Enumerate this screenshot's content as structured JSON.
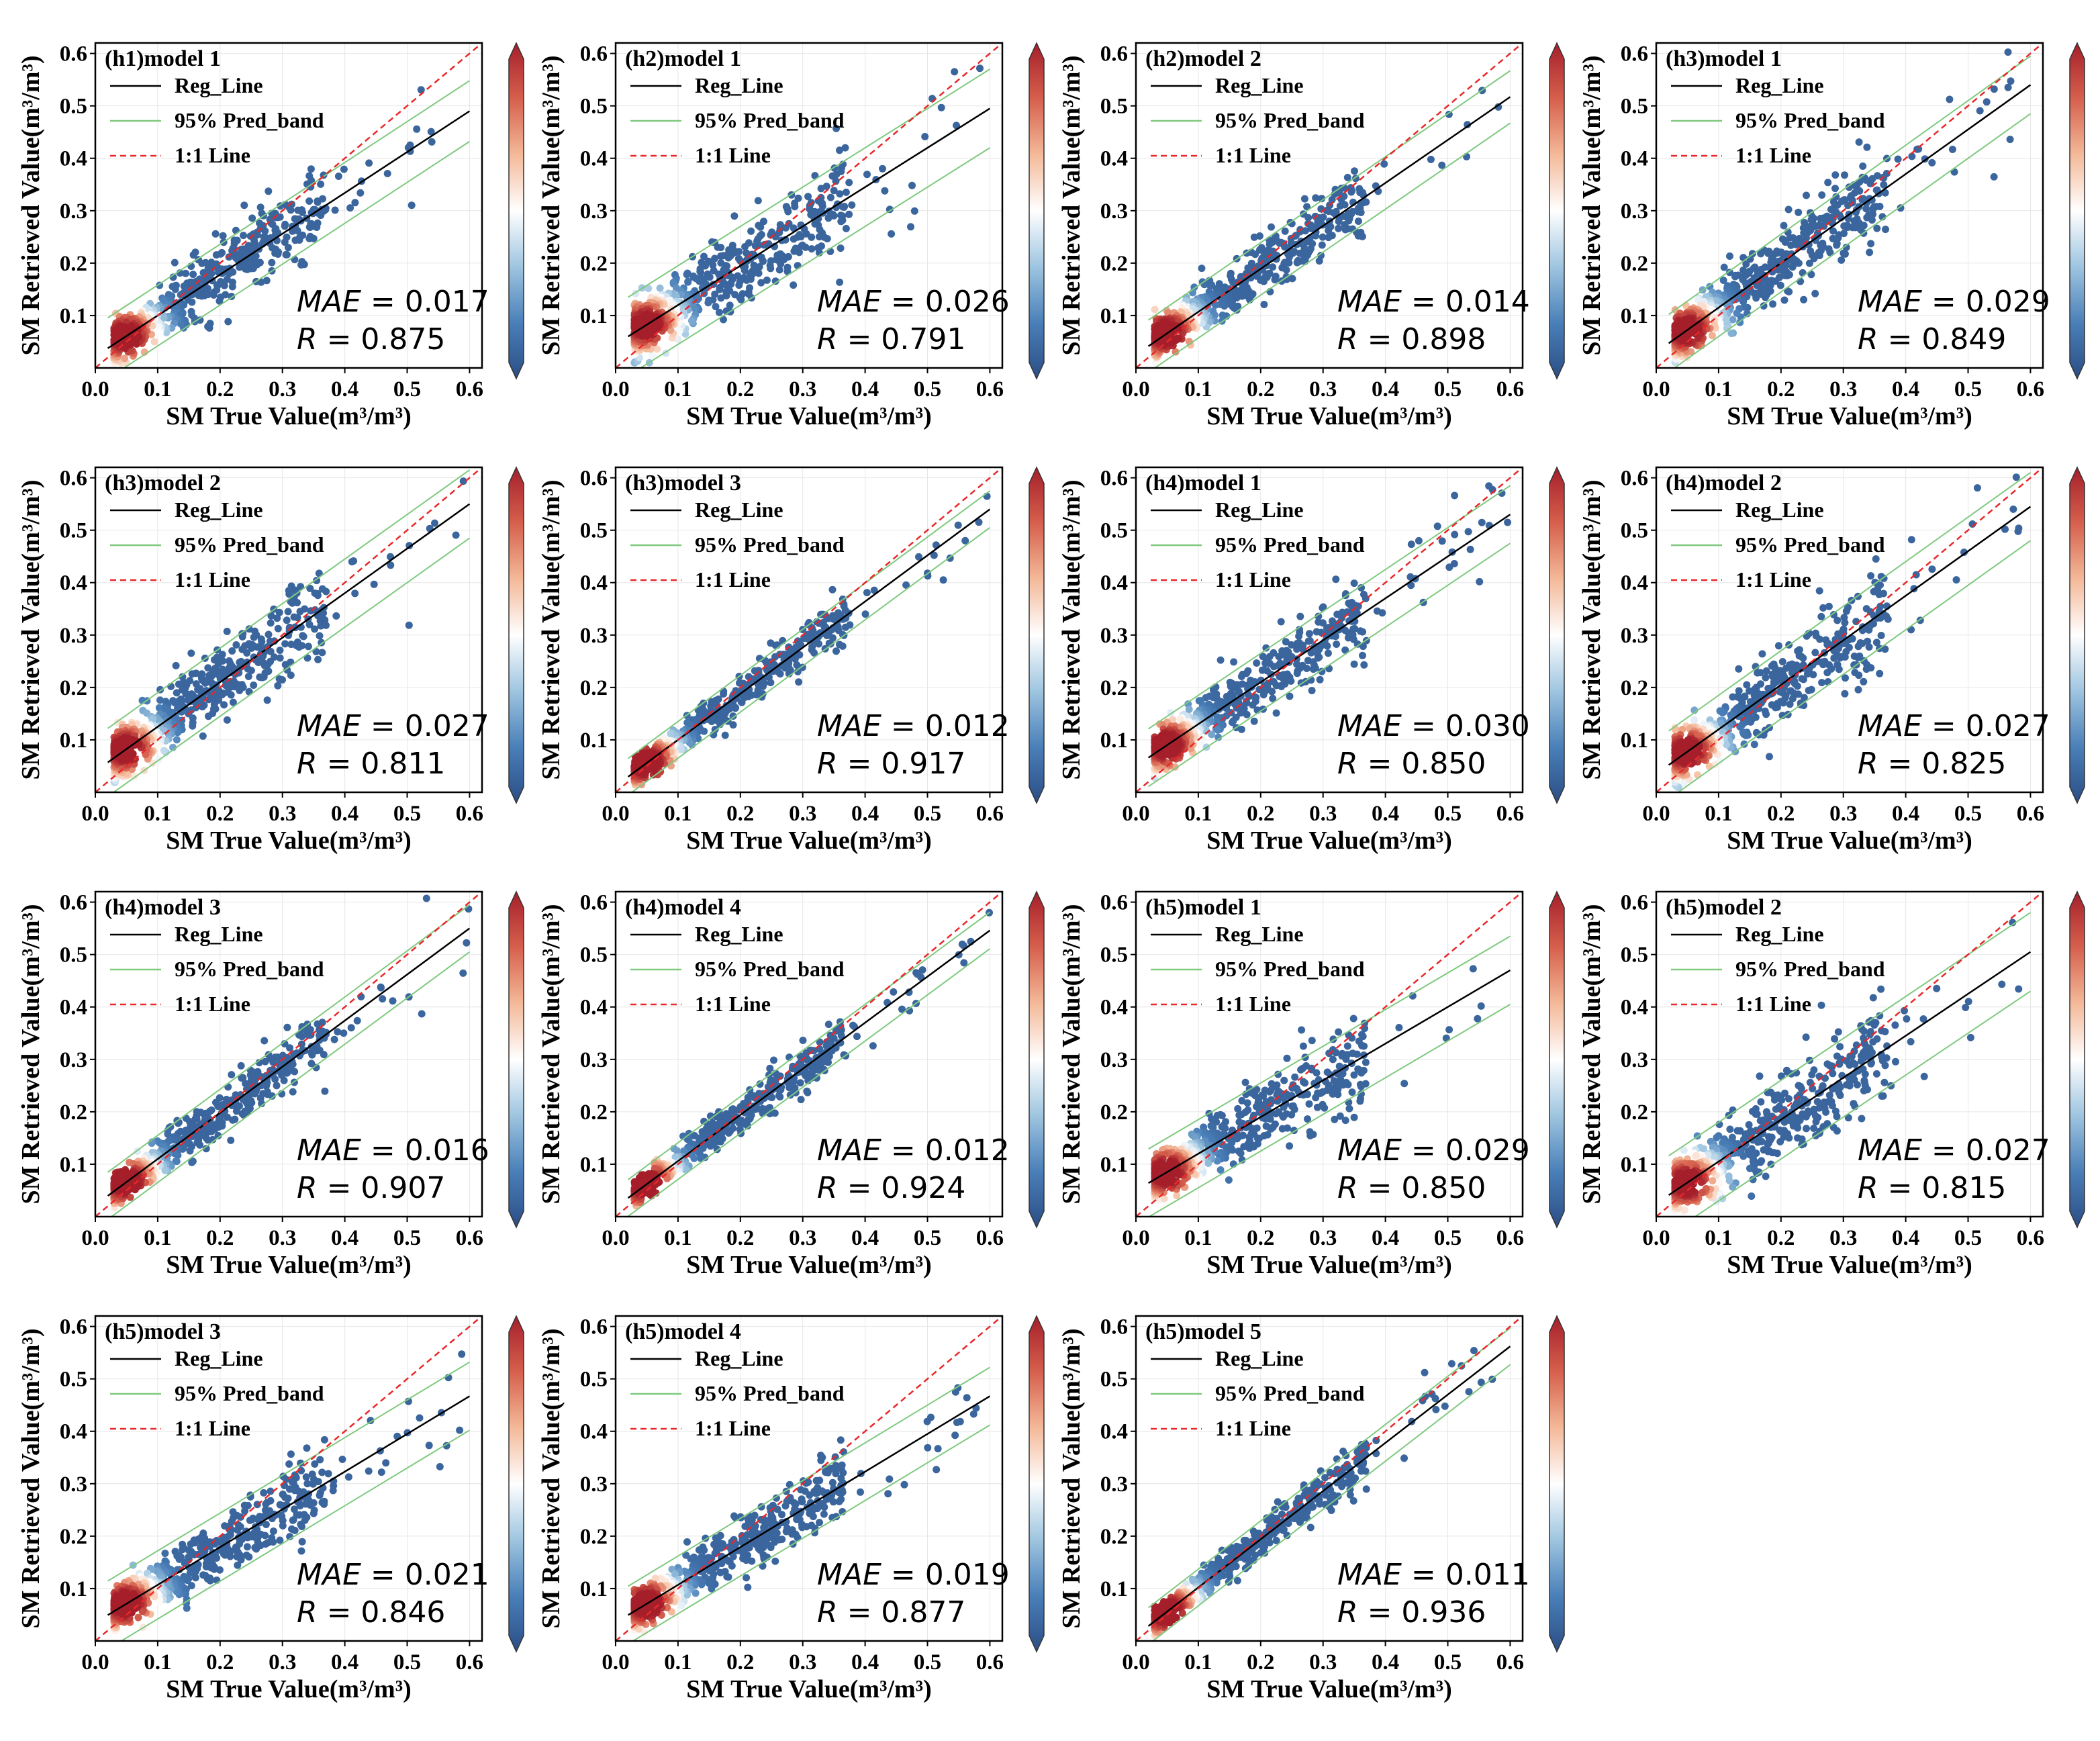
{
  "colors": {
    "reg_line": "#000000",
    "pred_band": "#7fc97f",
    "one_to_one": "#e8282a",
    "colormap": [
      "#2b4d85",
      "#4a7fb8",
      "#9ec5e0",
      "#ffffff",
      "#f4b999",
      "#d6604d",
      "#a51f2b"
    ]
  },
  "chart_data": [
    {
      "type": "scatter",
      "title": "(h1)model 1",
      "xlabel": "SM True Value(m³/m³)",
      "ylabel": "SM Retrieved Value(m³/m³)",
      "xlim": [
        0,
        0.62
      ],
      "ylim": [
        0,
        0.62
      ],
      "xticks": [
        "0.0",
        "0.1",
        "0.2",
        "0.3",
        "0.4",
        "0.5",
        "0.6"
      ],
      "yticks": [
        "0.1",
        "0.2",
        "0.3",
        "0.4",
        "0.5",
        "0.6"
      ],
      "legend": [
        "Reg_Line",
        "95% Pred_band",
        "1:1 Line"
      ],
      "mae_label": "MAE",
      "mae": "0.017",
      "r_label": "R",
      "r": "0.875",
      "reg": {
        "slope": 0.78,
        "intercept": 0.022
      },
      "band": 0.058,
      "spread": 0.032,
      "xmax": 0.6
    },
    {
      "type": "scatter",
      "title": "(h2)model 1",
      "xlabel": "SM True Value(m³/m³)",
      "ylabel": "SM Retrieved Value(m³/m³)",
      "xlim": [
        0,
        0.62
      ],
      "ylim": [
        0,
        0.62
      ],
      "xticks": [
        "0.0",
        "0.1",
        "0.2",
        "0.3",
        "0.4",
        "0.5",
        "0.6"
      ],
      "yticks": [
        "0.1",
        "0.2",
        "0.3",
        "0.4",
        "0.5",
        "0.6"
      ],
      "legend": [
        "Reg_Line",
        "95% Pred_band",
        "1:1 Line"
      ],
      "mae_label": "MAE",
      "mae": "0.026",
      "r_label": "R",
      "r": "0.791",
      "reg": {
        "slope": 0.75,
        "intercept": 0.045
      },
      "band": 0.075,
      "spread": 0.038,
      "xmax": 0.6
    },
    {
      "type": "scatter",
      "title": "(h2)model 2",
      "xlabel": "SM True Value(m³/m³)",
      "ylabel": "SM Retrieved Value(m³/m³)",
      "xlim": [
        0,
        0.62
      ],
      "ylim": [
        0,
        0.62
      ],
      "xticks": [
        "0.0",
        "0.1",
        "0.2",
        "0.3",
        "0.4",
        "0.5",
        "0.6"
      ],
      "yticks": [
        "0.1",
        "0.2",
        "0.3",
        "0.4",
        "0.5",
        "0.6"
      ],
      "legend": [
        "Reg_Line",
        "95% Pred_band",
        "1:1 Line"
      ],
      "mae_label": "MAE",
      "mae": "0.014",
      "r_label": "R",
      "r": "0.898",
      "reg": {
        "slope": 0.82,
        "intercept": 0.025
      },
      "band": 0.05,
      "spread": 0.028,
      "xmax": 0.6
    },
    {
      "type": "scatter",
      "title": "(h3)model 1",
      "xlabel": "SM True Value(m³/m³)",
      "ylabel": "SM Retrieved Value(m³/m³)",
      "xlim": [
        0,
        0.62
      ],
      "ylim": [
        0,
        0.62
      ],
      "xticks": [
        "0.0",
        "0.1",
        "0.2",
        "0.3",
        "0.4",
        "0.5",
        "0.6"
      ],
      "yticks": [
        "0.1",
        "0.2",
        "0.3",
        "0.4",
        "0.5",
        "0.6"
      ],
      "legend": [
        "Reg_Line",
        "95% Pred_band",
        "1:1 Line"
      ],
      "mae_label": "MAE",
      "mae": "0.029",
      "r_label": "R",
      "r": "0.849",
      "reg": {
        "slope": 0.85,
        "intercept": 0.03
      },
      "band": 0.055,
      "spread": 0.032,
      "xmax": 0.6
    },
    {
      "type": "scatter",
      "title": "(h3)model 2",
      "xlabel": "SM True Value(m³/m³)",
      "ylabel": "SM Retrieved Value(m³/m³)",
      "xlim": [
        0,
        0.62
      ],
      "ylim": [
        0,
        0.62
      ],
      "xticks": [
        "0.0",
        "0.1",
        "0.2",
        "0.3",
        "0.4",
        "0.5",
        "0.6"
      ],
      "yticks": [
        "0.1",
        "0.2",
        "0.3",
        "0.4",
        "0.5",
        "0.6"
      ],
      "legend": [
        "Reg_Line",
        "95% Pred_band",
        "1:1 Line"
      ],
      "mae_label": "MAE",
      "mae": "0.027",
      "r_label": "R",
      "r": "0.811",
      "reg": {
        "slope": 0.85,
        "intercept": 0.04
      },
      "band": 0.065,
      "spread": 0.035,
      "xmax": 0.6
    },
    {
      "type": "scatter",
      "title": "(h3)model 3",
      "xlabel": "SM True Value(m³/m³)",
      "ylabel": "SM Retrieved Value(m³/m³)",
      "xlim": [
        0,
        0.62
      ],
      "ylim": [
        0,
        0.62
      ],
      "xticks": [
        "0.0",
        "0.1",
        "0.2",
        "0.3",
        "0.4",
        "0.5",
        "0.6"
      ],
      "yticks": [
        "0.1",
        "0.2",
        "0.3",
        "0.4",
        "0.5",
        "0.6"
      ],
      "legend": [
        "Reg_Line",
        "95% Pred_band",
        "1:1 Line"
      ],
      "mae_label": "MAE",
      "mae": "0.012",
      "r_label": "R",
      "r": "0.917",
      "reg": {
        "slope": 0.88,
        "intercept": 0.012
      },
      "band": 0.035,
      "spread": 0.018,
      "xmax": 0.6
    },
    {
      "type": "scatter",
      "title": "(h4)model 1",
      "xlabel": "SM True Value(m³/m³)",
      "ylabel": "SM Retrieved Value(m³/m³)",
      "xlim": [
        0,
        0.62
      ],
      "ylim": [
        0,
        0.62
      ],
      "xticks": [
        "0.0",
        "0.1",
        "0.2",
        "0.3",
        "0.4",
        "0.5",
        "0.6"
      ],
      "yticks": [
        "0.1",
        "0.2",
        "0.3",
        "0.4",
        "0.5",
        "0.6"
      ],
      "legend": [
        "Reg_Line",
        "95% Pred_band",
        "1:1 Line"
      ],
      "mae_label": "MAE",
      "mae": "0.030",
      "r_label": "R",
      "r": "0.850",
      "reg": {
        "slope": 0.8,
        "intercept": 0.05
      },
      "band": 0.055,
      "spread": 0.03,
      "xmax": 0.6
    },
    {
      "type": "scatter",
      "title": "(h4)model 2",
      "xlabel": "SM True Value(m³/m³)",
      "ylabel": "SM Retrieved Value(m³/m³)",
      "xlim": [
        0,
        0.62
      ],
      "ylim": [
        0,
        0.62
      ],
      "xticks": [
        "0.0",
        "0.1",
        "0.2",
        "0.3",
        "0.4",
        "0.5",
        "0.6"
      ],
      "yticks": [
        "0.1",
        "0.2",
        "0.3",
        "0.4",
        "0.5",
        "0.6"
      ],
      "legend": [
        "Reg_Line",
        "95% Pred_band",
        "1:1 Line"
      ],
      "mae_label": "MAE",
      "mae": "0.027",
      "r_label": "R",
      "r": "0.825",
      "reg": {
        "slope": 0.85,
        "intercept": 0.035
      },
      "band": 0.065,
      "spread": 0.035,
      "xmax": 0.6
    },
    {
      "type": "scatter",
      "title": "(h4)model 3",
      "xlabel": "SM True Value(m³/m³)",
      "ylabel": "SM Retrieved Value(m³/m³)",
      "xlim": [
        0,
        0.62
      ],
      "ylim": [
        0,
        0.62
      ],
      "xticks": [
        "0.0",
        "0.1",
        "0.2",
        "0.3",
        "0.4",
        "0.5",
        "0.6"
      ],
      "yticks": [
        "0.1",
        "0.2",
        "0.3",
        "0.4",
        "0.5",
        "0.6"
      ],
      "legend": [
        "Reg_Line",
        "95% Pred_band",
        "1:1 Line"
      ],
      "mae_label": "MAE",
      "mae": "0.016",
      "r_label": "R",
      "r": "0.907",
      "reg": {
        "slope": 0.88,
        "intercept": 0.022
      },
      "band": 0.045,
      "spread": 0.022,
      "xmax": 0.6
    },
    {
      "type": "scatter",
      "title": "(h4)model 4",
      "xlabel": "SM True Value(m³/m³)",
      "ylabel": "SM Retrieved Value(m³/m³)",
      "xlim": [
        0,
        0.62
      ],
      "ylim": [
        0,
        0.62
      ],
      "xticks": [
        "0.0",
        "0.1",
        "0.2",
        "0.3",
        "0.4",
        "0.5",
        "0.6"
      ],
      "yticks": [
        "0.1",
        "0.2",
        "0.3",
        "0.4",
        "0.5",
        "0.6"
      ],
      "legend": [
        "Reg_Line",
        "95% Pred_band",
        "1:1 Line"
      ],
      "mae_label": "MAE",
      "mae": "0.012",
      "r_label": "R",
      "r": "0.924",
      "reg": {
        "slope": 0.88,
        "intercept": 0.018
      },
      "band": 0.035,
      "spread": 0.018,
      "xmax": 0.6
    },
    {
      "type": "scatter",
      "title": "(h5)model 1",
      "xlabel": "SM True Value(m³/m³)",
      "ylabel": "SM Retrieved Value(m³/m³)",
      "xlim": [
        0,
        0.62
      ],
      "ylim": [
        0,
        0.62
      ],
      "xticks": [
        "0.0",
        "0.1",
        "0.2",
        "0.3",
        "0.4",
        "0.5",
        "0.6"
      ],
      "yticks": [
        "0.1",
        "0.2",
        "0.3",
        "0.4",
        "0.5",
        "0.6"
      ],
      "legend": [
        "Reg_Line",
        "95% Pred_band",
        "1:1 Line"
      ],
      "mae_label": "MAE",
      "mae": "0.029",
      "r_label": "R",
      "r": "0.850",
      "reg": {
        "slope": 0.7,
        "intercept": 0.05
      },
      "band": 0.065,
      "spread": 0.032,
      "xmax": 0.6
    },
    {
      "type": "scatter",
      "title": "(h5)model 2",
      "xlabel": "SM True Value(m³/m³)",
      "ylabel": "SM Retrieved Value(m³/m³)",
      "xlim": [
        0,
        0.62
      ],
      "ylim": [
        0,
        0.62
      ],
      "xticks": [
        "0.0",
        "0.1",
        "0.2",
        "0.3",
        "0.4",
        "0.5",
        "0.6"
      ],
      "yticks": [
        "0.1",
        "0.2",
        "0.3",
        "0.4",
        "0.5",
        "0.6"
      ],
      "legend": [
        "Reg_Line",
        "95% Pred_band",
        "1:1 Line"
      ],
      "mae_label": "MAE",
      "mae": "0.027",
      "r_label": "R",
      "r": "0.815",
      "reg": {
        "slope": 0.8,
        "intercept": 0.025
      },
      "band": 0.075,
      "spread": 0.038,
      "xmax": 0.6
    },
    {
      "type": "scatter",
      "title": "(h5)model 3",
      "xlabel": "SM True Value(m³/m³)",
      "ylabel": "SM Retrieved Value(m³/m³)",
      "xlim": [
        0,
        0.62
      ],
      "ylim": [
        0,
        0.62
      ],
      "xticks": [
        "0.0",
        "0.1",
        "0.2",
        "0.3",
        "0.4",
        "0.5",
        "0.6"
      ],
      "yticks": [
        "0.1",
        "0.2",
        "0.3",
        "0.4",
        "0.5",
        "0.6"
      ],
      "legend": [
        "Reg_Line",
        "95% Pred_band",
        "1:1 Line"
      ],
      "mae_label": "MAE",
      "mae": "0.021",
      "r_label": "R",
      "r": "0.846",
      "reg": {
        "slope": 0.72,
        "intercept": 0.035
      },
      "band": 0.065,
      "spread": 0.03,
      "xmax": 0.6
    },
    {
      "type": "scatter",
      "title": "(h5)model 4",
      "xlabel": "SM True Value(m³/m³)",
      "ylabel": "SM Retrieved Value(m³/m³)",
      "xlim": [
        0,
        0.62
      ],
      "ylim": [
        0,
        0.62
      ],
      "xticks": [
        "0.0",
        "0.1",
        "0.2",
        "0.3",
        "0.4",
        "0.5",
        "0.6"
      ],
      "yticks": [
        "0.1",
        "0.2",
        "0.3",
        "0.4",
        "0.5",
        "0.6"
      ],
      "legend": [
        "Reg_Line",
        "95% Pred_band",
        "1:1 Line"
      ],
      "mae_label": "MAE",
      "mae": "0.019",
      "r_label": "R",
      "r": "0.877",
      "reg": {
        "slope": 0.72,
        "intercept": 0.035
      },
      "band": 0.055,
      "spread": 0.028,
      "xmax": 0.6
    },
    {
      "type": "scatter",
      "title": "(h5)model 5",
      "xlabel": "SM True Value(m³/m³)",
      "ylabel": "SM Retrieved Value(m³/m³)",
      "xlim": [
        0,
        0.62
      ],
      "ylim": [
        0,
        0.62
      ],
      "xticks": [
        "0.0",
        "0.1",
        "0.2",
        "0.3",
        "0.4",
        "0.5",
        "0.6"
      ],
      "yticks": [
        "0.1",
        "0.2",
        "0.3",
        "0.4",
        "0.5",
        "0.6"
      ],
      "legend": [
        "Reg_Line",
        "95% Pred_band",
        "1:1 Line"
      ],
      "mae_label": "MAE",
      "mae": "0.011",
      "r_label": "R",
      "r": "0.936",
      "reg": {
        "slope": 0.92,
        "intercept": 0.01
      },
      "band": 0.035,
      "spread": 0.018,
      "xmax": 0.6
    }
  ]
}
